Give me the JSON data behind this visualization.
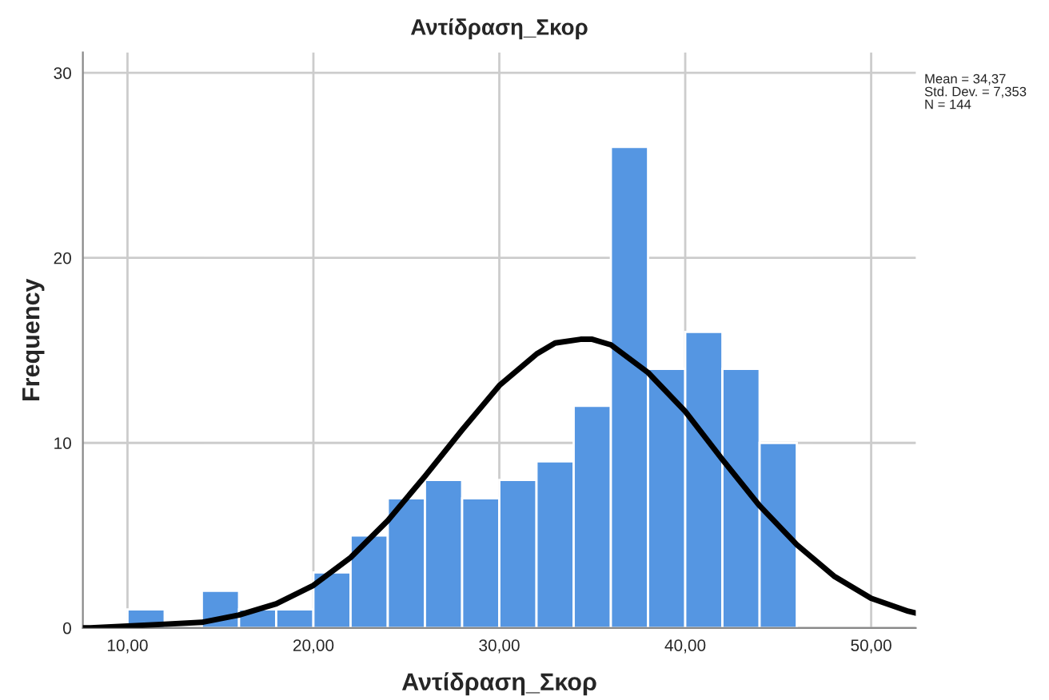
{
  "chart_data": {
    "type": "histogram",
    "title": "Αντίδραση_Σκορ",
    "xlabel": "Αντίδραση_Σκορ",
    "ylabel": "Frequency",
    "bins": [
      10,
      12,
      14,
      16,
      18,
      20,
      22,
      24,
      26,
      28,
      30,
      32,
      34,
      36,
      38,
      40,
      42,
      44,
      46
    ],
    "values": [
      1,
      0,
      2,
      1,
      1,
      3,
      5,
      7,
      8,
      7,
      8,
      9,
      12,
      26,
      14,
      16,
      14,
      10
    ],
    "color": "#5596e2",
    "series": [
      {
        "type": "line",
        "color": "#000000",
        "x": [
          7.6,
          8,
          10,
          12,
          14,
          16,
          18,
          20,
          22,
          24,
          26,
          28,
          30,
          32,
          33,
          34.37,
          35,
          36,
          38,
          40,
          42,
          44,
          46,
          48,
          50,
          52,
          52.4
        ],
        "values": [
          0.0,
          0.0,
          0.1,
          0.2,
          0.3,
          0.7,
          1.3,
          2.3,
          3.8,
          5.8,
          8.2,
          10.7,
          13.1,
          14.8,
          15.4,
          15.6,
          15.6,
          15.3,
          13.8,
          11.7,
          9.1,
          6.6,
          4.5,
          2.8,
          1.6,
          0.9,
          0.8
        ]
      }
    ],
    "xlim": [
      7.6,
      52.4
    ],
    "ylim": [
      0,
      31.1
    ],
    "xticks": [
      {
        "value": 10,
        "label": "10,00"
      },
      {
        "value": 20,
        "label": "20,00"
      },
      {
        "value": 30,
        "label": "30,00"
      },
      {
        "value": 40,
        "label": "40,00"
      },
      {
        "value": 50,
        "label": "50,00"
      }
    ],
    "yticks": [
      0,
      10,
      20,
      30
    ],
    "grid": true,
    "annotations": [
      "Mean = 34,37",
      "Std. Dev. = 7,353",
      "N = 144"
    ]
  }
}
